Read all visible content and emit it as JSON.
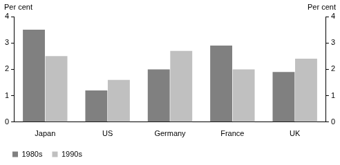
{
  "chart_data": {
    "type": "bar",
    "categories": [
      "Japan",
      "US",
      "Germany",
      "France",
      "UK"
    ],
    "series": [
      {
        "name": "1980s",
        "color": "#808080",
        "values": [
          3.5,
          1.2,
          2.0,
          2.9,
          1.9
        ]
      },
      {
        "name": "1990s",
        "color": "#c0c0c0",
        "values": [
          2.5,
          1.6,
          2.7,
          2.0,
          2.4
        ]
      }
    ],
    "y_label": "Per cent",
    "y2_label": "Per cent",
    "ylim": [
      0,
      4
    ],
    "yticks": [
      0,
      1,
      2,
      3,
      4
    ],
    "y2lim": [
      0,
      4
    ],
    "y2ticks": [
      0,
      1,
      2,
      3,
      4
    ],
    "grid": false,
    "legend": "bottom-left"
  }
}
